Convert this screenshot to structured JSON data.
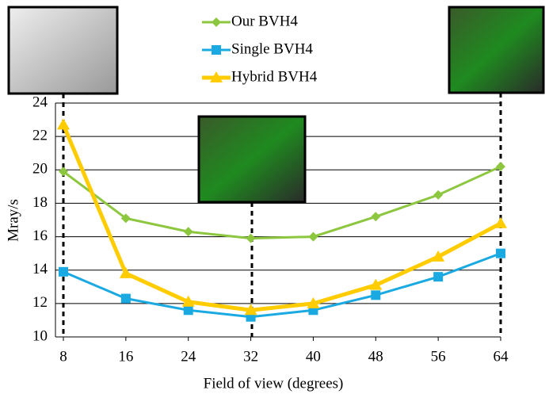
{
  "chart_data": {
    "type": "line",
    "x": [
      8,
      16,
      24,
      32,
      40,
      48,
      56,
      64
    ],
    "xlim": [
      8,
      64
    ],
    "xticks": [
      8,
      16,
      24,
      32,
      40,
      48,
      56,
      64
    ],
    "ylim": [
      10,
      24
    ],
    "yticks": [
      10,
      12,
      14,
      16,
      18,
      20,
      22,
      24
    ],
    "xlabel": "Field of view (degrees)",
    "ylabel": "Mray/s",
    "grid": true,
    "series": [
      {
        "name": "Our BVH4",
        "color": "#8dc63f",
        "marker": "diamond",
        "values": [
          19.9,
          17.1,
          16.3,
          15.9,
          16.0,
          17.2,
          18.5,
          20.2
        ]
      },
      {
        "name": "Single BVH4",
        "color": "#1ba9e1",
        "marker": "square",
        "values": [
          13.9,
          12.3,
          11.6,
          11.2,
          11.6,
          12.5,
          13.6,
          15.0
        ]
      },
      {
        "name": "Hybrid BVH4",
        "color": "#ffcc00",
        "marker": "triangle",
        "values": [
          22.7,
          13.8,
          12.1,
          11.6,
          12.0,
          13.1,
          14.8,
          16.8
        ]
      }
    ]
  }
}
